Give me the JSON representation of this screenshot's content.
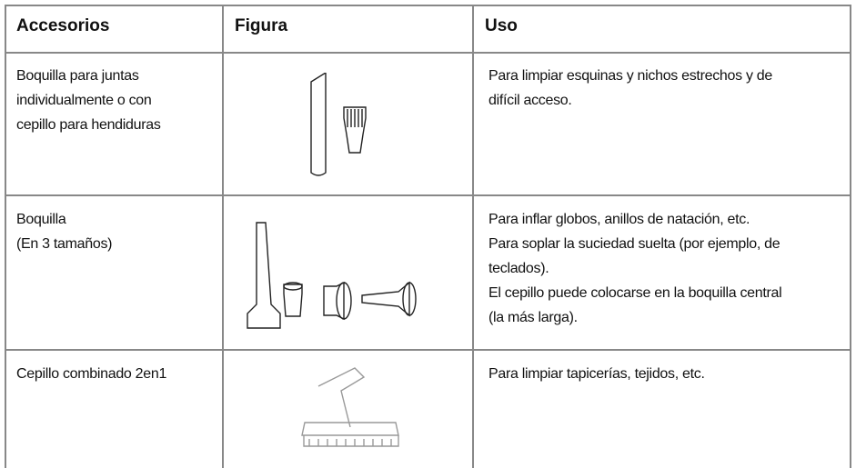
{
  "table": {
    "header": [
      "Accesorios",
      "Figura",
      "Uso"
    ],
    "rows": [
      {
        "accessory": [
          "Boquilla para juntas",
          "individualmente o con",
          "cepillo para hendiduras"
        ],
        "use": [
          "Para limpiar esquinas y nichos estrechos y de",
          "difícil acceso."
        ]
      },
      {
        "accessory": [
          "Boquilla",
          "(En 3 tamaños)"
        ],
        "use": [
          "Para inflar globos, anillos de natación, etc.",
          "Para soplar la suciedad suelta (por ejemplo, de",
          "teclados).",
          "El cepillo puede colocarse en la boquilla central",
          "(la más larga)."
        ]
      },
      {
        "accessory": [
          "Cepillo combinado 2en1"
        ],
        "use": [
          "Para limpiar tapicerías, tejidos, etc."
        ]
      }
    ]
  }
}
